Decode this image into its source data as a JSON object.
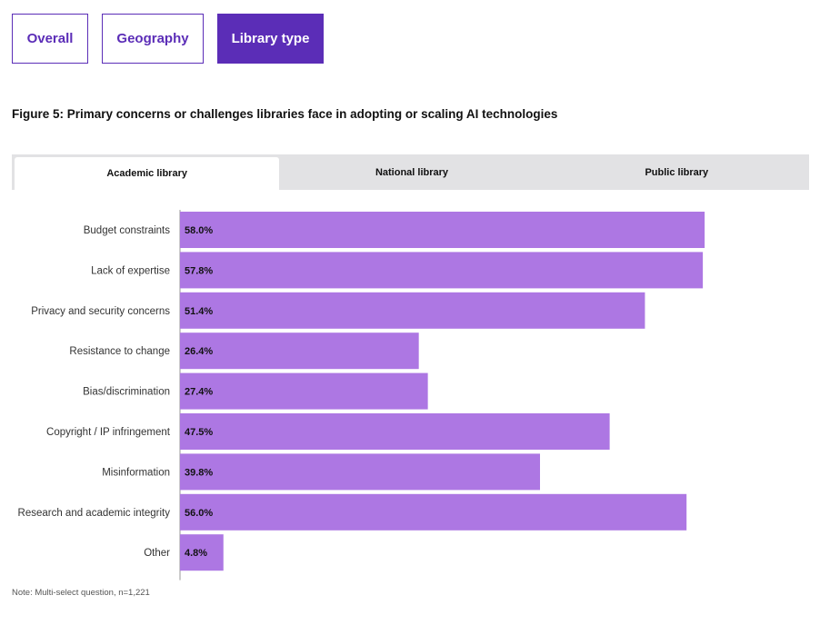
{
  "filters": {
    "items": [
      {
        "label": "Overall",
        "active": false
      },
      {
        "label": "Geography",
        "active": false
      },
      {
        "label": "Library type",
        "active": true
      }
    ]
  },
  "figure": {
    "title": "Figure 5: Primary concerns or challenges libraries face in adopting or scaling AI technologies",
    "note": "Note: Multi-select question, n=1,221"
  },
  "tabs": [
    {
      "label": "Academic library",
      "active": true
    },
    {
      "label": "National library",
      "active": false
    },
    {
      "label": "Public library",
      "active": false
    }
  ],
  "colors": {
    "accent": "#5b2db7",
    "bar": "#ad77e3",
    "tab_bg": "#e2e2e4"
  },
  "chart_data": {
    "type": "bar",
    "orientation": "horizontal",
    "categories": [
      "Budget constraints",
      "Lack of expertise",
      "Privacy and security concerns",
      "Resistance to change",
      "Bias/discrimination",
      "Copyright / IP infringement",
      "Misinformation",
      "Research and academic integrity",
      "Other"
    ],
    "values": [
      58.0,
      57.8,
      51.4,
      26.4,
      27.4,
      47.5,
      39.8,
      56.0,
      4.8
    ],
    "value_labels": [
      "58.0%",
      "57.8%",
      "51.4%",
      "26.4%",
      "27.4%",
      "47.5%",
      "39.8%",
      "56.0%",
      "4.8%"
    ],
    "unit": "%",
    "xlim": [
      0,
      60
    ],
    "grid": false,
    "legend": "none"
  }
}
